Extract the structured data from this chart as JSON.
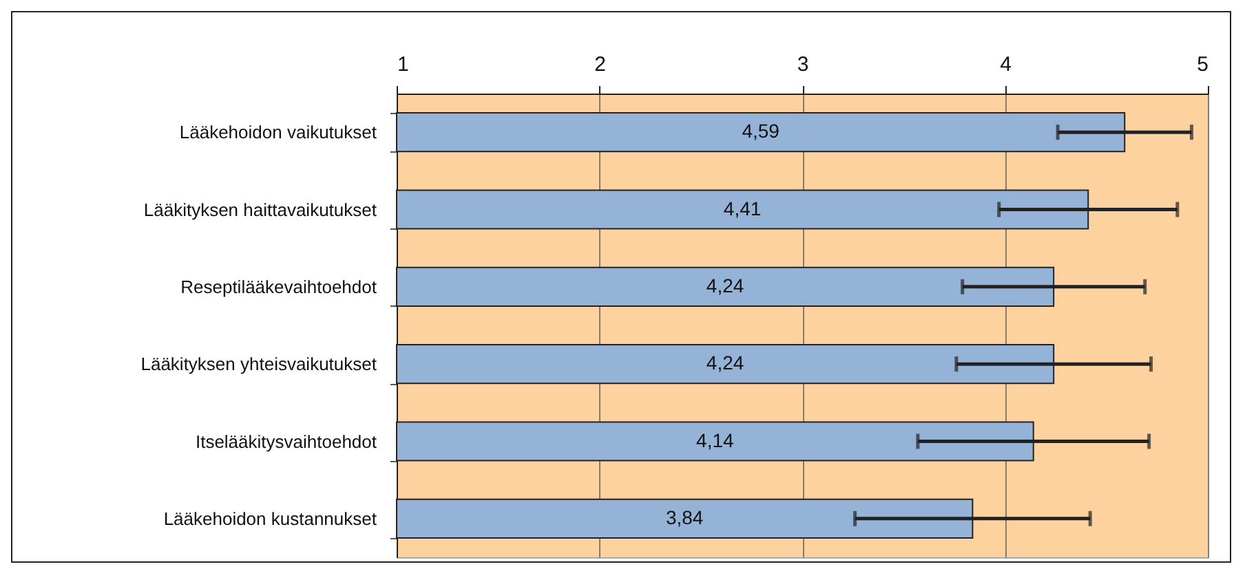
{
  "chart_data": {
    "type": "bar",
    "orientation": "horizontal",
    "categories": [
      "Lääkehoidon vaikutukset",
      "Lääkityksen haittavaikutukset",
      "Reseptilääkevaihtoehdot",
      "Lääkityksen yhteisvaikutukset",
      "Itselääkitysvaihtoehdot",
      "Lääkehoidon kustannukset"
    ],
    "values": [
      4.59,
      4.41,
      4.24,
      4.24,
      4.14,
      3.84
    ],
    "errors": [
      0.33,
      0.44,
      0.45,
      0.48,
      0.57,
      0.58
    ],
    "value_labels": [
      "4,59",
      "4,41",
      "4,24",
      "4,24",
      "4,14",
      "3,84"
    ],
    "color": "#95b3d7",
    "xlim": [
      1,
      5
    ],
    "xticks": [
      1,
      2,
      3,
      4,
      5
    ],
    "grid": "x"
  }
}
